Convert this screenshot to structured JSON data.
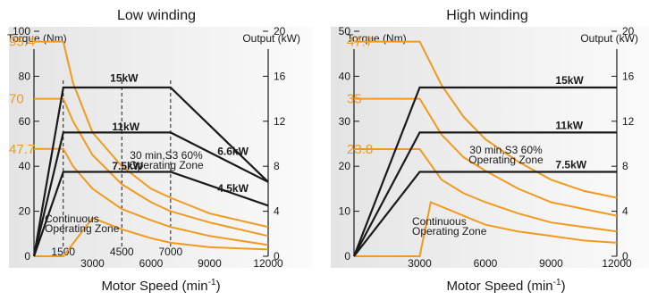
{
  "chart_data": [
    {
      "type": "line",
      "title": "Low winding",
      "xlabel": "Motor Speed (min",
      "xlabel_sup": "-1",
      "xlabel_close": ")",
      "ylabel_left": "Torque (Nm)",
      "ylabel_right": "Output (kW)",
      "xlim": [
        0,
        12000
      ],
      "ylim_left": [
        0,
        100
      ],
      "ylim_right": [
        0,
        20
      ],
      "left_ticks": [
        0,
        20,
        40,
        60,
        80,
        100
      ],
      "left_tick_labels": [
        "0",
        "20",
        "40",
        "60",
        "80",
        "100"
      ],
      "right_ticks": [
        0,
        4,
        8,
        12,
        16,
        20
      ],
      "right_tick_labels": [
        "0",
        "4",
        "8",
        "12",
        "16",
        "20"
      ],
      "x_ticks": [
        3000,
        6000,
        9000,
        12000
      ],
      "x_tick_labels": [
        "3000",
        "6000",
        "9000",
        "12000"
      ],
      "highlight_values": [
        {
          "label": "95.4",
          "value": 95.4
        },
        {
          "label": "70",
          "value": 70
        },
        {
          "label": "47.7",
          "value": 47.7
        }
      ],
      "speed_markers": [
        {
          "label": "1500",
          "x": 1500
        },
        {
          "label": "4500",
          "x": 4500
        },
        {
          "label": "7000",
          "x": 7000
        }
      ],
      "torque_series": [
        {
          "points": [
            [
              0,
              95.4
            ],
            [
              1500,
              95.4
            ],
            [
              2000,
              77
            ],
            [
              3000,
              55
            ],
            [
              4500,
              40
            ],
            [
              6000,
              30
            ],
            [
              7000,
              26
            ],
            [
              9000,
              19
            ],
            [
              12000,
              13
            ]
          ]
        },
        {
          "points": [
            [
              0,
              70
            ],
            [
              1500,
              70
            ],
            [
              2000,
              60
            ],
            [
              3000,
              45
            ],
            [
              4500,
              32
            ],
            [
              6000,
              24
            ],
            [
              7000,
              20
            ],
            [
              9000,
              15
            ],
            [
              12000,
              9
            ]
          ]
        },
        {
          "points": [
            [
              0,
              47.7
            ],
            [
              1500,
              47.7
            ],
            [
              2000,
              40
            ],
            [
              3000,
              30
            ],
            [
              4500,
              21
            ],
            [
              6000,
              16
            ],
            [
              7000,
              13
            ],
            [
              9000,
              9
            ],
            [
              12000,
              5
            ]
          ]
        },
        {
          "points": [
            [
              0,
              0
            ],
            [
              1500,
              0
            ],
            [
              3000,
              17
            ],
            [
              4500,
              12
            ],
            [
              6000,
              8
            ],
            [
              7000,
              6
            ],
            [
              9000,
              4
            ],
            [
              12000,
              3
            ]
          ]
        }
      ],
      "output_series": [
        {
          "label": "15kW",
          "label_at": [
            3900,
            15.5
          ],
          "points": [
            [
              0,
              0
            ],
            [
              1500,
              15
            ],
            [
              7000,
              15
            ],
            [
              12000,
              6.6
            ]
          ]
        },
        {
          "label": "11kW",
          "label_at": [
            4000,
            11.2
          ],
          "points": [
            [
              0,
              0
            ],
            [
              1500,
              11
            ],
            [
              7000,
              11
            ],
            [
              12000,
              6.6
            ]
          ]
        },
        {
          "label": "7.5kW",
          "label_at": [
            4000,
            7.7
          ],
          "points": [
            [
              0,
              0
            ],
            [
              1500,
              7.5
            ],
            [
              7000,
              7.5
            ],
            [
              12000,
              4.5
            ]
          ]
        }
      ],
      "side_labels": [
        {
          "label": "6.6kW",
          "at": [
            9400,
            9.0
          ]
        },
        {
          "label": "4.5kW",
          "at": [
            9400,
            5.7
          ]
        }
      ],
      "zone_s3": [
        "30 min,S3 60%",
        "Operating Zone"
      ],
      "zone_cont": [
        "Continuous",
        "Operating Zone"
      ],
      "colors": {
        "torque": "#f39a1e",
        "output": "#1a1a1a",
        "bg_left": "#e6e6e6",
        "bg_right": "#fafafa"
      }
    },
    {
      "type": "line",
      "title": "High winding",
      "xlabel": "Motor Speed (min",
      "xlabel_sup": "-1",
      "xlabel_close": ")",
      "ylabel_left": "Torque (Nm)",
      "ylabel_right": "Output (kW)",
      "xlim": [
        0,
        12000
      ],
      "ylim_left": [
        0,
        50
      ],
      "ylim_right": [
        0,
        20
      ],
      "left_ticks": [
        0,
        10,
        20,
        30,
        40,
        50
      ],
      "left_tick_labels": [
        "0",
        "10",
        "20",
        "30",
        "40",
        "50"
      ],
      "right_ticks": [
        0,
        4,
        8,
        12,
        16,
        20
      ],
      "right_tick_labels": [
        "0",
        "4",
        "8",
        "12",
        "16",
        "20"
      ],
      "x_ticks": [
        3000,
        6000,
        9000,
        12000
      ],
      "x_tick_labels": [
        "3000",
        "6000",
        "9000",
        "12000"
      ],
      "highlight_values": [
        {
          "label": "47.7",
          "value": 47.7
        },
        {
          "label": "35",
          "value": 35
        },
        {
          "label": "23.8",
          "value": 23.8
        }
      ],
      "speed_markers": [],
      "torque_series": [
        {
          "points": [
            [
              0,
              47.7
            ],
            [
              3000,
              47.7
            ],
            [
              4000,
              38
            ],
            [
              5000,
              31
            ],
            [
              6000,
              26
            ],
            [
              7500,
              21
            ],
            [
              9000,
              17
            ],
            [
              10500,
              14.5
            ],
            [
              12000,
              13
            ]
          ]
        },
        {
          "points": [
            [
              0,
              35
            ],
            [
              3000,
              35
            ],
            [
              4000,
              27
            ],
            [
              5000,
              22
            ],
            [
              6000,
              19
            ],
            [
              7500,
              15
            ],
            [
              9000,
              12
            ],
            [
              10500,
              10.5
            ],
            [
              12000,
              9
            ]
          ]
        },
        {
          "points": [
            [
              0,
              23.8
            ],
            [
              3000,
              23.8
            ],
            [
              4000,
              17
            ],
            [
              5000,
              14
            ],
            [
              6000,
              12
            ],
            [
              7500,
              9.5
            ],
            [
              9000,
              7.5
            ],
            [
              10500,
              6.5
            ],
            [
              12000,
              5.5
            ]
          ]
        },
        {
          "points": [
            [
              0,
              0
            ],
            [
              3000,
              0
            ],
            [
              3500,
              12
            ],
            [
              4500,
              10
            ],
            [
              6000,
              7
            ],
            [
              7500,
              5.5
            ],
            [
              9000,
              4.5
            ],
            [
              10500,
              3.5
            ],
            [
              12000,
              3
            ]
          ]
        }
      ],
      "output_series": [
        {
          "label": "15kW",
          "label_at": [
            9200,
            15.3
          ],
          "points": [
            [
              0,
              0
            ],
            [
              3000,
              15
            ],
            [
              12000,
              15
            ]
          ]
        },
        {
          "label": "11kW",
          "label_at": [
            9200,
            11.3
          ],
          "points": [
            [
              0,
              0
            ],
            [
              3000,
              11
            ],
            [
              12000,
              11
            ]
          ]
        },
        {
          "label": "7.5kW",
          "label_at": [
            9200,
            7.8
          ],
          "points": [
            [
              0,
              0
            ],
            [
              3000,
              7.5
            ],
            [
              12000,
              7.5
            ]
          ]
        }
      ],
      "side_labels": [],
      "zone_s3": [
        "30 min,S3 60%",
        "Operating Zone"
      ],
      "zone_cont": [
        "Continuous",
        "Operating Zone"
      ],
      "colors": {
        "torque": "#f39a1e",
        "output": "#1a1a1a",
        "bg_left": "#e6e6e6",
        "bg_right": "#fafafa"
      }
    }
  ]
}
